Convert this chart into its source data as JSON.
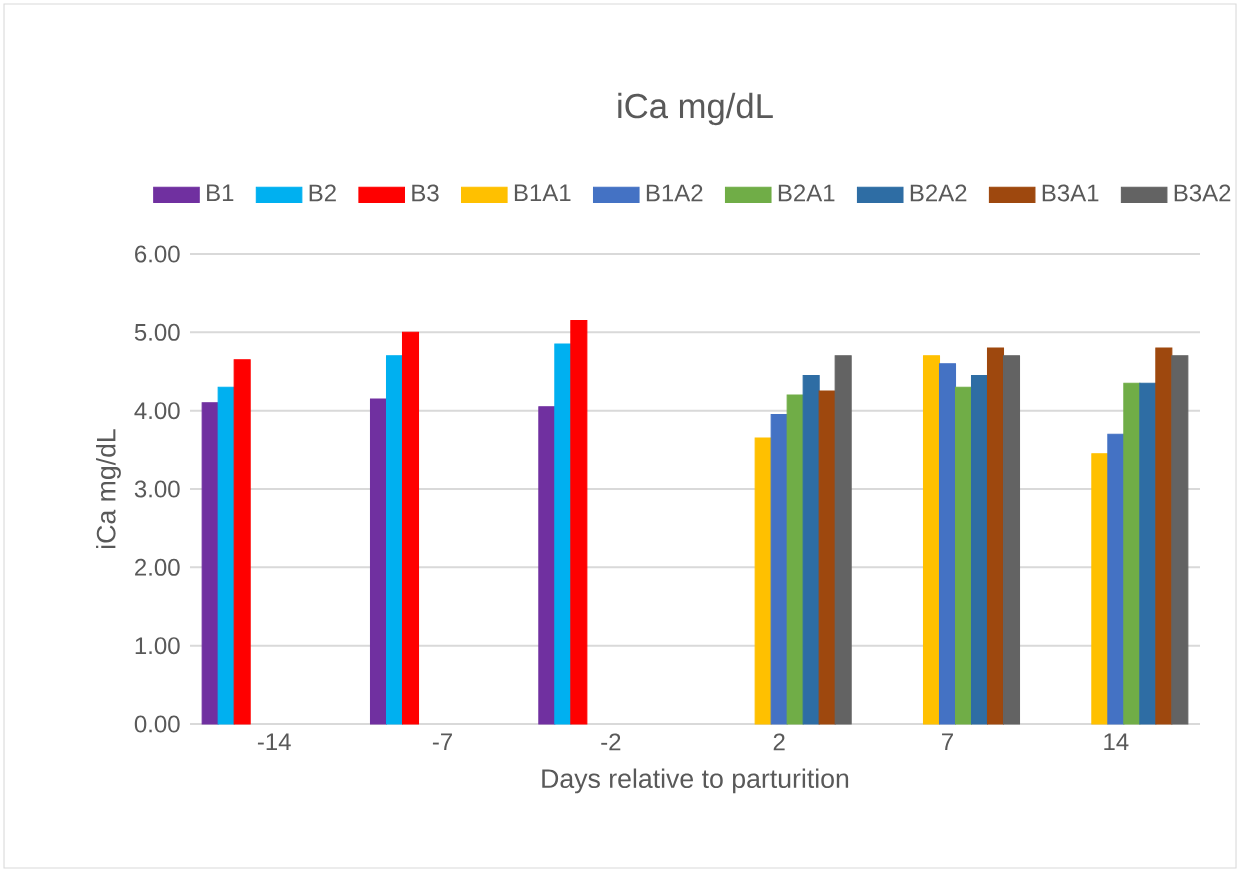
{
  "chart_data": {
    "type": "bar",
    "title": "iCa mg/dL",
    "xlabel": "Days relative to parturition",
    "ylabel": "iCa mg/dL",
    "categories": [
      "-14",
      "-7",
      "-2",
      "2",
      "7",
      "14"
    ],
    "series": [
      {
        "name": "B1",
        "color": "#7030a0",
        "values": [
          4.1,
          4.15,
          4.05,
          null,
          null,
          null
        ]
      },
      {
        "name": "B2",
        "color": "#00b0f0",
        "values": [
          4.3,
          4.7,
          4.85,
          null,
          null,
          null
        ]
      },
      {
        "name": "B3",
        "color": "#ff0000",
        "values": [
          4.65,
          5.0,
          5.15,
          null,
          null,
          null
        ]
      },
      {
        "name": "B1A1",
        "color": "#ffc000",
        "values": [
          null,
          null,
          null,
          3.65,
          4.7,
          3.45
        ]
      },
      {
        "name": "B1A2",
        "color": "#4472c4",
        "values": [
          null,
          null,
          null,
          3.95,
          4.6,
          3.7
        ]
      },
      {
        "name": "B2A1",
        "color": "#70ad47",
        "values": [
          null,
          null,
          null,
          4.2,
          4.3,
          4.35
        ]
      },
      {
        "name": "B2A2",
        "color": "#2e6da4",
        "values": [
          null,
          null,
          null,
          4.45,
          4.45,
          4.35
        ]
      },
      {
        "name": "B3A1",
        "color": "#9e480e",
        "values": [
          null,
          null,
          null,
          4.25,
          4.8,
          4.8
        ]
      },
      {
        "name": "B3A2",
        "color": "#636363",
        "values": [
          null,
          null,
          null,
          4.7,
          4.7,
          4.7
        ]
      }
    ],
    "ylim": [
      0,
      6
    ],
    "yticks": [
      {
        "value": 0,
        "label": "0.00"
      },
      {
        "value": 1,
        "label": "1.00"
      },
      {
        "value": 2,
        "label": "2.00"
      },
      {
        "value": 3,
        "label": "3.00"
      },
      {
        "value": 4,
        "label": "4.00"
      },
      {
        "value": 5,
        "label": "5.00"
      },
      {
        "value": 6,
        "label": "6.00"
      }
    ],
    "grid": "y",
    "legend": "top"
  }
}
